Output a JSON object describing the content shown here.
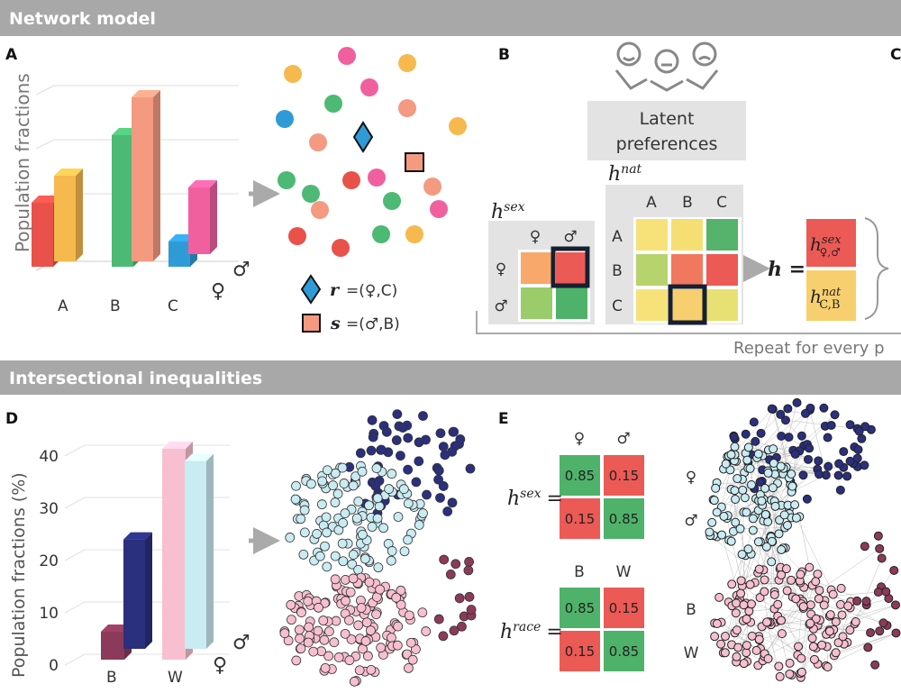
{
  "sections": {
    "top_title": "Network model",
    "bottom_title": "Intersectional inequalities"
  },
  "panel_a": {
    "label": "A",
    "ylabel": "Population fractions",
    "groups": [
      "A",
      "B",
      "C"
    ],
    "sex_symbols": [
      "♀",
      "♂"
    ],
    "colors": {
      "A_f": "#e8524a",
      "A_m": "#f6b94e",
      "B_f": "#4cb974",
      "B_m": "#f39a80",
      "C_f": "#2f9bd6",
      "C_m": "#f0609f"
    },
    "legend": [
      {
        "symbol": "r",
        "text": "=(♀,C)",
        "color": "#2f9bd6",
        "shape": "diamond"
      },
      {
        "symbol": "s",
        "text": "=(♂,B)",
        "color": "#f39a80",
        "shape": "square"
      }
    ]
  },
  "panel_b": {
    "label": "B",
    "latent_box": [
      "Latent",
      "preferences"
    ],
    "hsex": {
      "base": "h",
      "sup": "sex",
      "cols": [
        "♀",
        "♂"
      ],
      "rows": [
        "♀",
        "♂"
      ],
      "colors": [
        [
          "#f7a86a",
          "#ec5a55"
        ],
        [
          "#9bcc6a",
          "#4fb26a"
        ]
      ]
    },
    "hnat": {
      "base": "h",
      "sup": "nat",
      "cols": [
        "A",
        "B",
        "C"
      ],
      "rows": [
        "A",
        "B",
        "C"
      ],
      "colors": [
        [
          "#f7e27a",
          "#f5df72",
          "#55b36c"
        ],
        [
          "#b7d36e",
          "#f0785e",
          "#ec5a55"
        ],
        [
          "#f7e27a",
          "#f8cf6e",
          "#e6e172"
        ]
      ]
    },
    "h_eq": "h =",
    "h_top": {
      "base": "h",
      "sup": "sex",
      "sub": "♀,♂"
    },
    "h_bottom": {
      "base": "h",
      "sup": "nat",
      "sub": "C,B"
    },
    "repeat_text": "Repeat for every p",
    "panel_c_label": "C"
  },
  "panel_d": {
    "label": "D",
    "ylabel": "Population fractions (%)",
    "chart_data": {
      "type": "bar",
      "categories": [
        "B",
        "W"
      ],
      "series": [
        {
          "name": "♀",
          "values": [
            5,
            40
          ]
        },
        {
          "name": "♂",
          "values": [
            23,
            38
          ]
        }
      ],
      "yticks": [
        "0",
        "10",
        "20",
        "30",
        "40"
      ],
      "ylim": [
        0,
        40
      ]
    },
    "sex_symbols": [
      "♀",
      "♂"
    ]
  },
  "panel_e": {
    "label": "E",
    "hsex": {
      "base": "h",
      "sup": "sex",
      "eq": "=",
      "cols": [
        "♀",
        "♂"
      ],
      "rows": [
        "♀",
        "♂"
      ],
      "values": [
        [
          "0.85",
          "0.15"
        ],
        [
          "0.15",
          "0.85"
        ]
      ]
    },
    "hrace": {
      "base": "h",
      "sup": "race",
      "eq": "=",
      "cols": [
        "B",
        "W"
      ],
      "rows": [
        "B",
        "W"
      ],
      "values": [
        [
          "0.85",
          "0.15"
        ],
        [
          "0.15",
          "0.85"
        ]
      ]
    }
  }
}
